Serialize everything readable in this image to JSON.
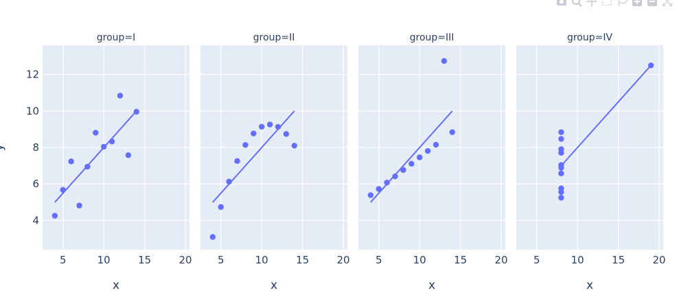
{
  "modebar": {
    "buttons": [
      {
        "name": "camera-icon"
      },
      {
        "name": "zoom-icon"
      },
      {
        "name": "pan-icon"
      },
      {
        "name": "box-select-icon"
      },
      {
        "name": "lasso-icon"
      },
      {
        "name": "zoom-in-icon"
      },
      {
        "name": "zoom-out-icon"
      },
      {
        "name": "autoscale-icon"
      }
    ]
  },
  "chart_data": {
    "type": "scatter",
    "ylabel": "y",
    "ylim": [
      2.4,
      13.6
    ],
    "xlim": [
      2.5,
      20.5
    ],
    "xticks": [
      5,
      10,
      15,
      20
    ],
    "yticks": [
      4,
      6,
      8,
      10,
      12
    ],
    "grid": true,
    "marker_color": "#636efa",
    "panel_bg": "#e5ecf6",
    "text_color": "#2a3f5f",
    "panels": [
      {
        "title": "group=I",
        "xlabel": "x",
        "x": [
          10,
          8,
          13,
          9,
          11,
          14,
          6,
          4,
          12,
          7,
          5
        ],
        "y": [
          8.04,
          6.95,
          7.58,
          8.81,
          8.33,
          9.96,
          7.24,
          4.26,
          10.84,
          4.82,
          5.68
        ],
        "trend": [
          [
            4,
            5.0
          ],
          [
            14,
            10.0
          ]
        ]
      },
      {
        "title": "group=II",
        "xlabel": "x",
        "x": [
          10,
          8,
          13,
          9,
          11,
          14,
          6,
          4,
          12,
          7,
          5
        ],
        "y": [
          9.14,
          8.14,
          8.74,
          8.77,
          9.26,
          8.1,
          6.13,
          3.1,
          9.13,
          7.26,
          4.74
        ],
        "trend": [
          [
            4,
            5.0
          ],
          [
            14,
            10.0
          ]
        ]
      },
      {
        "title": "group=III",
        "xlabel": "x",
        "x": [
          10,
          8,
          13,
          9,
          11,
          14,
          6,
          4,
          12,
          7,
          5
        ],
        "y": [
          7.46,
          6.77,
          12.74,
          7.11,
          7.81,
          8.84,
          6.08,
          5.39,
          8.15,
          6.42,
          5.73
        ],
        "trend": [
          [
            4,
            5.0
          ],
          [
            14,
            10.0
          ]
        ]
      },
      {
        "title": "group=IV",
        "xlabel": "x",
        "x": [
          8,
          8,
          8,
          8,
          8,
          8,
          8,
          19,
          8,
          8,
          8
        ],
        "y": [
          6.58,
          5.76,
          7.71,
          8.84,
          8.47,
          7.04,
          5.25,
          12.5,
          5.56,
          7.91,
          6.89
        ],
        "trend": [
          [
            8,
            7.0
          ],
          [
            19,
            12.5
          ]
        ]
      }
    ]
  }
}
